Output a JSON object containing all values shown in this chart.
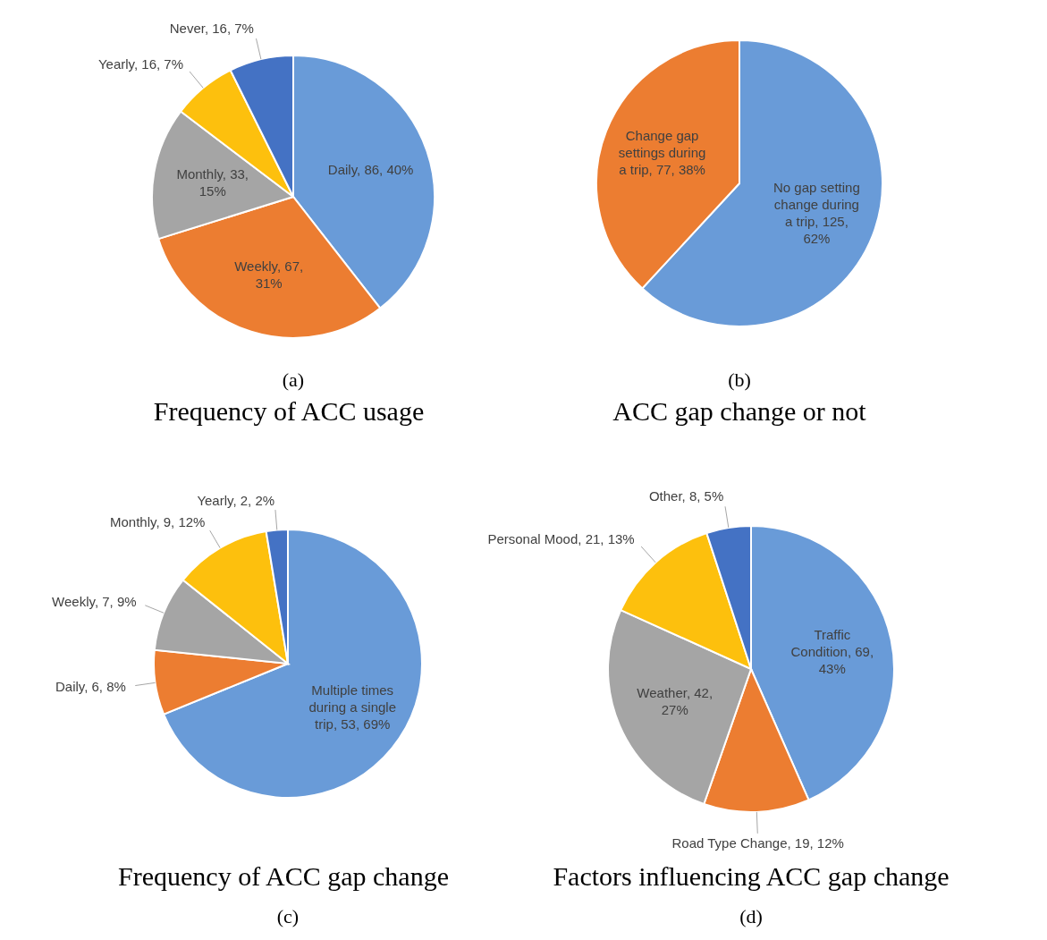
{
  "chart_data": [
    {
      "type": "pie",
      "title": "Frequency of ACC usage",
      "annotations": [
        "(a)"
      ],
      "categories": [
        "Daily",
        "Weekly",
        "Monthly",
        "Yearly",
        "Never"
      ],
      "values": [
        86,
        67,
        33,
        16,
        16
      ],
      "value_labels": [
        "86, 40%",
        "67, 31%",
        "33, 15%",
        "16, 7%",
        "16, 7%"
      ],
      "colors": [
        "#699bd8",
        "#ec7d31",
        "#a5a5a5",
        "#fdc00d",
        "#4472c4"
      ]
    },
    {
      "type": "pie",
      "title": "ACC gap change or not",
      "annotations": [
        "(b)"
      ],
      "categories": [
        "No gap setting change during a trip",
        "Change gap settings during a trip"
      ],
      "values": [
        125,
        77
      ],
      "value_labels": [
        "125, 62%",
        "77, 38%"
      ],
      "colors": [
        "#699bd8",
        "#ec7d31"
      ]
    },
    {
      "type": "pie",
      "title": "Frequency of ACC gap change",
      "annotations": [
        "(c)"
      ],
      "categories": [
        "Multiple times during a single trip",
        "Daily",
        "Weekly",
        "Monthly",
        "Yearly"
      ],
      "values": [
        53,
        6,
        7,
        9,
        2
      ],
      "value_labels": [
        "53, 69%",
        "6, 8%",
        "7, 9%",
        "9, 12%",
        "2, 2%"
      ],
      "colors": [
        "#699bd8",
        "#ec7d31",
        "#a5a5a5",
        "#fdc00d",
        "#4472c4"
      ]
    },
    {
      "type": "pie",
      "title": "Factors influencing ACC gap change",
      "annotations": [
        "(d)"
      ],
      "categories": [
        "Traffic Condition",
        "Road Type Change",
        "Weather",
        "Personal Mood",
        "Other"
      ],
      "values": [
        69,
        19,
        42,
        21,
        8
      ],
      "value_labels": [
        "69, 43%",
        "19, 12%",
        "42, 27%",
        "21, 13%",
        "8, 5%"
      ],
      "colors": [
        "#699bd8",
        "#ec7d31",
        "#a5a5a5",
        "#fdc00d",
        "#4472c4"
      ]
    }
  ]
}
